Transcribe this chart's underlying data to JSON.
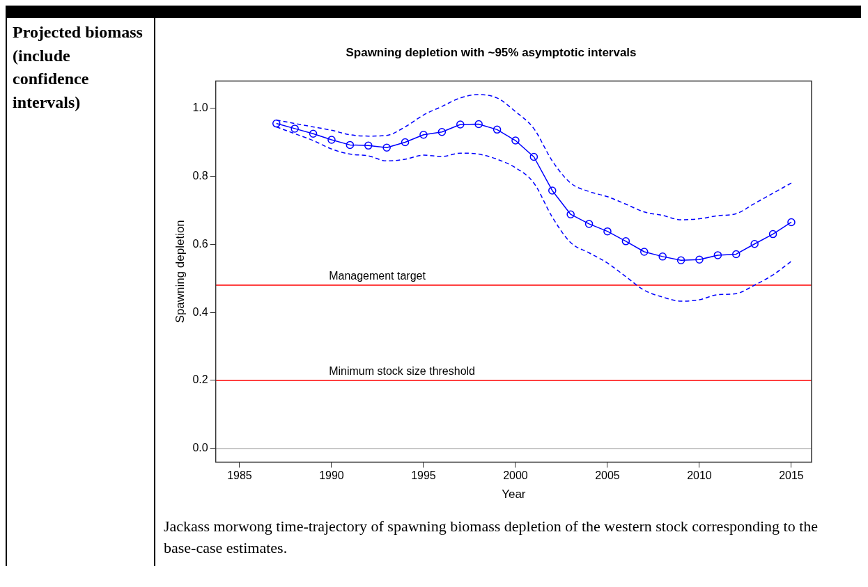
{
  "chart_data": {
    "type": "line",
    "title": "Spawning depletion with ~95% asymptotic intervals",
    "xlabel": "Year",
    "ylabel": "Spawning depletion",
    "x": [
      1987,
      1988,
      1989,
      1990,
      1991,
      1992,
      1993,
      1994,
      1995,
      1996,
      1997,
      1998,
      1999,
      2000,
      2001,
      2002,
      2003,
      2004,
      2005,
      2006,
      2007,
      2008,
      2009,
      2010,
      2011,
      2012,
      2013,
      2014,
      2015
    ],
    "series": [
      {
        "color": "#0000ff",
        "values": [
          0.955,
          0.94,
          0.925,
          0.907,
          0.892,
          0.89,
          0.884,
          0.9,
          0.922,
          0.93,
          0.952,
          0.953,
          0.937,
          0.905,
          0.857,
          0.758,
          0.688,
          0.66,
          0.638,
          0.609,
          0.578,
          0.564,
          0.553,
          0.555,
          0.568,
          0.571,
          0.601,
          0.63,
          0.665
        ],
        "marker": "circle"
      },
      {
        "color": "#0000ff",
        "line_style": "dashed",
        "marker": "none",
        "values": [
          0.965,
          0.955,
          0.945,
          0.935,
          0.922,
          0.918,
          0.92,
          0.945,
          0.98,
          1.005,
          1.03,
          1.04,
          1.03,
          0.99,
          0.94,
          0.845,
          0.78,
          0.755,
          0.74,
          0.718,
          0.695,
          0.685,
          0.672,
          0.675,
          0.684,
          0.69,
          0.72,
          0.75,
          0.78
        ]
      },
      {
        "color": "#0000ff",
        "line_style": "dashed",
        "marker": "none",
        "values": [
          0.945,
          0.925,
          0.905,
          0.88,
          0.865,
          0.86,
          0.845,
          0.85,
          0.862,
          0.858,
          0.868,
          0.865,
          0.85,
          0.825,
          0.78,
          0.68,
          0.605,
          0.575,
          0.545,
          0.505,
          0.465,
          0.445,
          0.433,
          0.437,
          0.452,
          0.455,
          0.48,
          0.51,
          0.55
        ]
      }
    ],
    "line_style": "solid",
    "grid": false,
    "legend": false,
    "xlim": [
      1983.7,
      2016.1
    ],
    "xticks": [
      1985,
      1990,
      1995,
      2000,
      2005,
      2010,
      2015
    ],
    "ylim": [
      -0.04,
      1.08
    ],
    "yticks": [
      {
        "value": 0,
        "label": "0.0"
      },
      0.2,
      0.4,
      0.6,
      0.8,
      {
        "value": 1,
        "label": "1.0"
      }
    ],
    "ref_lines": [
      {
        "axis": "y",
        "value": 0.48,
        "label": "Management target",
        "color": "#ff0000"
      },
      {
        "axis": "y",
        "value": 0.2,
        "label": "Minimum stock size threshold",
        "color": "#ff0000"
      },
      {
        "axis": "y",
        "value": 0,
        "color": "#bebebe"
      }
    ],
    "annotations": [
      "Projected biomass (include confidence intervals)",
      "Jackass morwong time-trajectory of spawning biomass depletion of the western stock corresponding to the base-case estimates."
    ]
  }
}
